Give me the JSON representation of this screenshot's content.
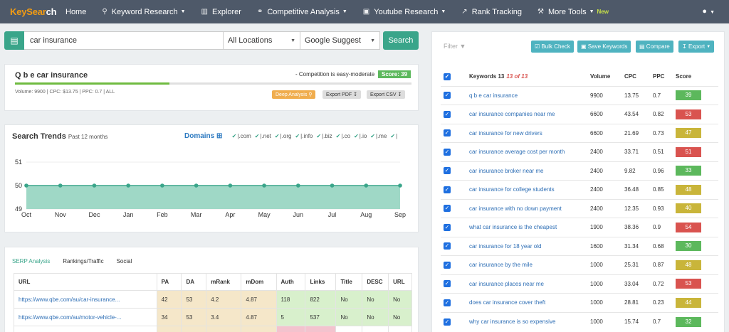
{
  "nav": {
    "logo_a": "KeySear",
    "logo_b": "ch",
    "items": [
      {
        "label": "Home",
        "icon": "home",
        "caret": false
      },
      {
        "label": "Keyword Research",
        "icon": "search-icon",
        "caret": true
      },
      {
        "label": "Explorer",
        "icon": "bar-chart-icon",
        "caret": false
      },
      {
        "label": "Competitive Analysis",
        "icon": "link-icon",
        "caret": true
      },
      {
        "label": "Youtube Research",
        "icon": "tv-icon",
        "caret": true
      },
      {
        "label": "Rank Tracking",
        "icon": "line-chart-icon",
        "caret": false
      },
      {
        "label": "More Tools",
        "icon": "wrench-icon",
        "caret": true
      }
    ],
    "new_badge": "New"
  },
  "search": {
    "query": "car insurance",
    "location": "All Locations",
    "source": "Google Suggest",
    "button": "Search"
  },
  "summary": {
    "keyword": "Q b e car insurance",
    "competition": "- Competition is easy-moderate",
    "score": "Score: 39",
    "progress_percent": 39,
    "metrics": "Volume: 9900 | CPC: $13.75 | PPC: 0.7 | ALL",
    "deep": "Deep Analysis",
    "pdf": "Export PDF",
    "csv": "Export CSV"
  },
  "trends": {
    "title": "Search Trends",
    "subtitle": "Past 12 months",
    "domains_label": "Domains",
    "domains": [
      "|.com",
      "|.net",
      "|.org",
      "|.info",
      "|.biz",
      "|.co",
      "|.io",
      "|.me",
      "|"
    ],
    "chart_data": {
      "type": "area",
      "x": [
        "Oct",
        "Nov",
        "Dec",
        "Jan",
        "Feb",
        "Mar",
        "Apr",
        "May",
        "Jun",
        "Jul",
        "Aug",
        "Sep"
      ],
      "values": [
        50,
        50,
        50,
        50,
        50,
        50,
        50,
        50,
        50,
        50,
        50,
        50
      ],
      "ylim": [
        49,
        51
      ],
      "yticks": [
        "51",
        "50",
        "49"
      ],
      "color": "#9fd8c6",
      "line_color": "#3aa58a"
    }
  },
  "serp": {
    "tabs": [
      "SERP Analysis",
      "Rankings/Traffic",
      "Social"
    ],
    "headers": [
      "URL",
      "PA",
      "DA",
      "mRank",
      "mDom",
      "Auth",
      "Links",
      "Title",
      "DESC",
      "URL"
    ],
    "rows": [
      [
        "https://www.qbe.com/au/car-insurance...",
        "42",
        "53",
        "4.2",
        "4.87",
        "118",
        "822",
        "No",
        "No",
        "No"
      ],
      [
        "https://www.qbe.com/au/motor-vehicle-...",
        "34",
        "53",
        "3.4",
        "4.87",
        "5",
        "537",
        "No",
        "No",
        "No"
      ]
    ]
  },
  "right": {
    "filter": "Filter",
    "buttons": [
      "Bulk Check",
      "Save Keywords",
      "Compare",
      "Export"
    ],
    "header_kw": "Keywords 13",
    "header_count": "13 of 13",
    "headers": [
      "Volume",
      "CPC",
      "PPC",
      "Score"
    ],
    "rows": [
      {
        "kw": "q b e car insurance",
        "vol": "9900",
        "cpc": "13.75",
        "ppc": "0.7",
        "score": "39",
        "color": "#5cb85c"
      },
      {
        "kw": "car insurance companies near me",
        "vol": "6600",
        "cpc": "43.54",
        "ppc": "0.82",
        "score": "53",
        "color": "#d9534f"
      },
      {
        "kw": "car insurance for new drivers",
        "vol": "6600",
        "cpc": "21.69",
        "ppc": "0.73",
        "score": "47",
        "color": "#c9b53a"
      },
      {
        "kw": "car insurance average cost per month",
        "vol": "2400",
        "cpc": "33.71",
        "ppc": "0.51",
        "score": "51",
        "color": "#d9534f"
      },
      {
        "kw": "car insurance broker near me",
        "vol": "2400",
        "cpc": "9.82",
        "ppc": "0.96",
        "score": "33",
        "color": "#5cb85c"
      },
      {
        "kw": "car insurance for college students",
        "vol": "2400",
        "cpc": "36.48",
        "ppc": "0.85",
        "score": "48",
        "color": "#c9b53a"
      },
      {
        "kw": "car insurance with no down payment",
        "vol": "2400",
        "cpc": "12.35",
        "ppc": "0.93",
        "score": "40",
        "color": "#c9b53a"
      },
      {
        "kw": "what car insurance is the cheapest",
        "vol": "1900",
        "cpc": "38.36",
        "ppc": "0.9",
        "score": "54",
        "color": "#d9534f"
      },
      {
        "kw": "car insurance for 18 year old",
        "vol": "1600",
        "cpc": "31.34",
        "ppc": "0.68",
        "score": "30",
        "color": "#5cb85c"
      },
      {
        "kw": "car insurance by the mile",
        "vol": "1000",
        "cpc": "25.31",
        "ppc": "0.87",
        "score": "48",
        "color": "#c9b53a"
      },
      {
        "kw": "car insurance places near me",
        "vol": "1000",
        "cpc": "33.04",
        "ppc": "0.72",
        "score": "53",
        "color": "#d9534f"
      },
      {
        "kw": "does car insurance cover theft",
        "vol": "1000",
        "cpc": "28.81",
        "ppc": "0.23",
        "score": "44",
        "color": "#c9b53a"
      },
      {
        "kw": "why car insurance is so expensive",
        "vol": "1000",
        "cpc": "15.74",
        "ppc": "0.7",
        "score": "32",
        "color": "#5cb85c"
      }
    ]
  }
}
